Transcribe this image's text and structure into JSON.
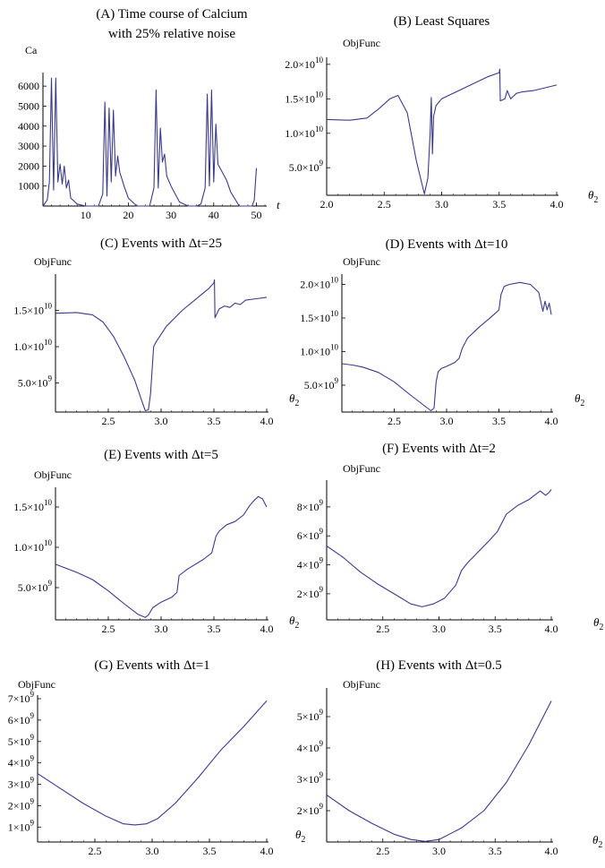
{
  "panels": [
    {
      "id": "A",
      "title_lines": [
        "(A) Time course of Calcium",
        "with 25% relative noise"
      ],
      "ylabel": "Ca",
      "xlabel": "t",
      "xlim": [
        0,
        52
      ],
      "ylim": [
        0,
        6500
      ],
      "xticks": [
        {
          "v": 10,
          "label": "10"
        },
        {
          "v": 20,
          "label": "20"
        },
        {
          "v": 30,
          "label": "30"
        },
        {
          "v": 40,
          "label": "40"
        },
        {
          "v": 50,
          "label": "50"
        }
      ],
      "yticks": [
        {
          "v": 1000,
          "label": "1000"
        },
        {
          "v": 2000,
          "label": "2000"
        },
        {
          "v": 3000,
          "label": "3000"
        },
        {
          "v": 4000,
          "label": "4000"
        },
        {
          "v": 5000,
          "label": "5000"
        },
        {
          "v": 6000,
          "label": "6000"
        }
      ],
      "chart_data": {
        "type": "line",
        "x": [
          0,
          1,
          1.5,
          2,
          2.5,
          3,
          3.5,
          4,
          4.5,
          5,
          5.5,
          6,
          6.5,
          7,
          8,
          10,
          12,
          13,
          14,
          14.5,
          15,
          15.5,
          16,
          16.5,
          17,
          17.5,
          18,
          19,
          20,
          22,
          24,
          25,
          26,
          26.5,
          27,
          27.5,
          28,
          28.5,
          29,
          30,
          31,
          32,
          34,
          36,
          37,
          38,
          38.5,
          39,
          39.5,
          40,
          40.5,
          41,
          42,
          43,
          44,
          46,
          48,
          49,
          49.5,
          50
        ],
        "y": [
          0,
          300,
          1200,
          6400,
          800,
          6400,
          1200,
          2100,
          1100,
          2000,
          900,
          1300,
          400,
          300,
          100,
          0,
          0,
          0,
          600,
          5200,
          500,
          4900,
          1200,
          4800,
          1500,
          2500,
          1700,
          1000,
          400,
          0,
          0,
          0,
          900,
          5800,
          900,
          3900,
          2200,
          2600,
          1500,
          1000,
          600,
          200,
          0,
          0,
          100,
          900,
          5600,
          1000,
          5800,
          1200,
          4100,
          2100,
          1700,
          1300,
          700,
          0,
          0,
          0,
          300,
          1900
        ]
      }
    },
    {
      "id": "B",
      "title_lines": [
        "(B) Least Squares"
      ],
      "ylabel": "ObjFunc",
      "xlabel": "θ2",
      "xlim": [
        2.0,
        4.0
      ],
      "ylim": [
        1000000000.0,
        20500000000.0
      ],
      "xticks": [
        {
          "v": 2.0,
          "label": "2.0"
        },
        {
          "v": 2.5,
          "label": "2.5"
        },
        {
          "v": 3.0,
          "label": "3.0"
        },
        {
          "v": 3.5,
          "label": "3.5"
        },
        {
          "v": 4.0,
          "label": "4.0"
        }
      ],
      "yticks": [
        {
          "v": 5000000000.0,
          "mant": "5.0",
          "exp": "9"
        },
        {
          "v": 10000000000.0,
          "mant": "1.0",
          "exp": "10"
        },
        {
          "v": 15000000000.0,
          "mant": "1.5",
          "exp": "10"
        },
        {
          "v": 20000000000.0,
          "mant": "2.0",
          "exp": "10"
        }
      ],
      "chart_data": {
        "type": "line",
        "x": [
          2.0,
          2.2,
          2.35,
          2.45,
          2.55,
          2.62,
          2.7,
          2.78,
          2.85,
          2.88,
          2.9,
          2.91,
          2.92,
          2.93,
          2.94,
          2.95,
          3.0,
          3.2,
          3.4,
          3.5,
          3.505,
          3.51,
          3.55,
          3.57,
          3.6,
          3.65,
          3.7,
          3.8,
          3.9,
          4.0
        ],
        "y": [
          12000000000.0,
          11900000000.0,
          12200000000.0,
          13500000000.0,
          15000000000.0,
          15500000000.0,
          13000000000.0,
          6000000000.0,
          1200000000.0,
          3500000000.0,
          10000000000.0,
          15200000000.0,
          7000000000.0,
          12500000000.0,
          13200000000.0,
          14000000000.0,
          15000000000.0,
          16600000000.0,
          18200000000.0,
          18800000000.0,
          19300000000.0,
          14700000000.0,
          15000000000.0,
          16200000000.0,
          15000000000.0,
          15800000000.0,
          16000000000.0,
          16200000000.0,
          16600000000.0,
          17000000000.0
        ]
      }
    },
    {
      "id": "C",
      "title_lines": [
        "(C) Events with Δt=25"
      ],
      "ylabel": "ObjFunc",
      "xlabel": "θ2",
      "xlim": [
        2.0,
        4.0
      ],
      "ylim": [
        1000000000.0,
        19500000000.0
      ],
      "xticks": [
        {
          "v": 2.5,
          "label": "2.5"
        },
        {
          "v": 3.0,
          "label": "3.0"
        },
        {
          "v": 3.5,
          "label": "3.5"
        },
        {
          "v": 4.0,
          "label": "4.0"
        }
      ],
      "yticks": [
        {
          "v": 5000000000.0,
          "mant": "5.0",
          "exp": "9"
        },
        {
          "v": 10000000000.0,
          "mant": "1.0",
          "exp": "10"
        },
        {
          "v": 15000000000.0,
          "mant": "1.5",
          "exp": "10"
        }
      ],
      "chart_data": {
        "type": "line",
        "x": [
          2.0,
          2.2,
          2.35,
          2.45,
          2.55,
          2.65,
          2.75,
          2.82,
          2.85,
          2.88,
          2.9,
          2.92,
          2.93,
          2.95,
          3.05,
          3.2,
          3.35,
          3.45,
          3.5,
          3.505,
          3.51,
          3.55,
          3.6,
          3.65,
          3.7,
          3.75,
          3.8,
          3.9,
          4.0
        ],
        "y": [
          14600000000.0,
          14700000000.0,
          14400000000.0,
          13400000000.0,
          11400000000.0,
          8600000000.0,
          5400000000.0,
          2400000000.0,
          1200000000.0,
          1300000000.0,
          3500000000.0,
          8000000000.0,
          10000000000.0,
          10600000000.0,
          12800000000.0,
          15000000000.0,
          16800000000.0,
          18000000000.0,
          18800000000.0,
          19200000000.0,
          14000000000.0,
          15200000000.0,
          15600000000.0,
          15400000000.0,
          16000000000.0,
          15800000000.0,
          16400000000.0,
          16600000000.0,
          16800000000.0
        ]
      }
    },
    {
      "id": "D",
      "title_lines": [
        "(D) Events with Δt=10"
      ],
      "ylabel": "ObjFunc",
      "xlabel": "θ2",
      "xlim": [
        2.0,
        4.0
      ],
      "ylim": [
        1000000000.0,
        21000000000.0
      ],
      "xticks": [
        {
          "v": 2.5,
          "label": "2.5"
        },
        {
          "v": 3.0,
          "label": "3.0"
        },
        {
          "v": 3.5,
          "label": "3.5"
        },
        {
          "v": 4.0,
          "label": "4.0"
        }
      ],
      "yticks": [
        {
          "v": 5000000000.0,
          "mant": "5.0",
          "exp": "9"
        },
        {
          "v": 10000000000.0,
          "mant": "1.0",
          "exp": "10"
        },
        {
          "v": 15000000000.0,
          "mant": "1.5",
          "exp": "10"
        },
        {
          "v": 20000000000.0,
          "mant": "2.0",
          "exp": "10"
        }
      ],
      "chart_data": {
        "type": "line",
        "x": [
          2.0,
          2.1,
          2.2,
          2.35,
          2.5,
          2.65,
          2.8,
          2.85,
          2.88,
          2.9,
          2.92,
          2.95,
          3.0,
          3.08,
          3.12,
          3.15,
          3.2,
          3.3,
          3.45,
          3.5,
          3.52,
          3.55,
          3.6,
          3.7,
          3.8,
          3.88,
          3.92,
          3.94,
          3.96,
          3.98,
          4.0
        ],
        "y": [
          8200000000.0,
          8000000000.0,
          7700000000.0,
          6900000000.0,
          5500000000.0,
          3600000000.0,
          1800000000.0,
          1200000000.0,
          1600000000.0,
          5500000000.0,
          7000000000.0,
          7500000000.0,
          7800000000.0,
          8400000000.0,
          9000000000.0,
          10500000000.0,
          12000000000.0,
          13500000000.0,
          15500000000.0,
          16200000000.0,
          18500000000.0,
          19700000000.0,
          20000000000.0,
          20300000000.0,
          20000000000.0,
          18800000000.0,
          16000000000.0,
          17500000000.0,
          16200000000.0,
          17200000000.0,
          15500000000.0
        ]
      }
    },
    {
      "id": "E",
      "title_lines": [
        "(E) Events with Δt=5"
      ],
      "ylabel": "ObjFunc",
      "xlabel": "θ2",
      "xlim": [
        2.0,
        4.0
      ],
      "ylim": [
        1000000000.0,
        17000000000.0
      ],
      "xticks": [
        {
          "v": 2.5,
          "label": "2.5"
        },
        {
          "v": 3.0,
          "label": "3.0"
        },
        {
          "v": 3.5,
          "label": "3.5"
        },
        {
          "v": 4.0,
          "label": "4.0"
        }
      ],
      "yticks": [
        {
          "v": 5000000000.0,
          "mant": "5.0",
          "exp": "9"
        },
        {
          "v": 10000000000.0,
          "mant": "1.0",
          "exp": "10"
        },
        {
          "v": 15000000000.0,
          "mant": "1.5",
          "exp": "10"
        }
      ],
      "chart_data": {
        "type": "line",
        "x": [
          2.0,
          2.2,
          2.35,
          2.5,
          2.65,
          2.78,
          2.85,
          2.88,
          2.92,
          3.0,
          3.1,
          3.15,
          3.17,
          3.25,
          3.4,
          3.48,
          3.52,
          3.55,
          3.62,
          3.7,
          3.78,
          3.84,
          3.88,
          3.92,
          3.96,
          4.0
        ],
        "y": [
          7900000000.0,
          6900000000.0,
          6000000000.0,
          4600000000.0,
          3000000000.0,
          1700000000.0,
          1300000000.0,
          1600000000.0,
          2500000000.0,
          3200000000.0,
          3800000000.0,
          4400000000.0,
          6500000000.0,
          7300000000.0,
          8500000000.0,
          9300000000.0,
          11400000000.0,
          12000000000.0,
          12800000000.0,
          13200000000.0,
          14000000000.0,
          15200000000.0,
          15800000000.0,
          16300000000.0,
          16000000000.0,
          15000000000.0
        ]
      }
    },
    {
      "id": "F",
      "title_lines": [
        "(F) Events with Δt=2"
      ],
      "ylabel": "ObjFunc",
      "xlabel": "θ2",
      "xlim": [
        2.0,
        4.0
      ],
      "ylim": [
        200000000.0,
        9600000000.0
      ],
      "xticks": [
        {
          "v": 2.5,
          "label": "2.5"
        },
        {
          "v": 3.0,
          "label": "3.0"
        },
        {
          "v": 3.5,
          "label": "3.5"
        },
        {
          "v": 4.0,
          "label": "4.0"
        }
      ],
      "yticks": [
        {
          "v": 2000000000.0,
          "mant": "2",
          "exp": "9"
        },
        {
          "v": 4000000000.0,
          "mant": "4",
          "exp": "9"
        },
        {
          "v": 6000000000.0,
          "mant": "6",
          "exp": "9"
        },
        {
          "v": 8000000000.0,
          "mant": "8",
          "exp": "9"
        }
      ],
      "chart_data": {
        "type": "line",
        "x": [
          2.0,
          2.15,
          2.3,
          2.45,
          2.6,
          2.75,
          2.85,
          2.95,
          3.05,
          3.15,
          3.2,
          3.25,
          3.35,
          3.45,
          3.52,
          3.6,
          3.7,
          3.8,
          3.9,
          3.95,
          3.98,
          4.0
        ],
        "y": [
          5300000000.0,
          4500000000.0,
          3500000000.0,
          2700000000.0,
          2000000000.0,
          1300000000.0,
          1100000000.0,
          1300000000.0,
          1700000000.0,
          2600000000.0,
          3600000000.0,
          4100000000.0,
          4900000000.0,
          5700000000.0,
          6300000000.0,
          7500000000.0,
          8100000000.0,
          8500000000.0,
          9100000000.0,
          8800000000.0,
          9000000000.0,
          9200000000.0
        ]
      }
    },
    {
      "id": "G",
      "title_lines": [
        "(G) Events with Δt=1"
      ],
      "ylabel": "ObjFunc",
      "xlabel": "θ2",
      "xlim": [
        2.0,
        4.0
      ],
      "ylim": [
        300000000.0,
        7000000000.0
      ],
      "xticks": [
        {
          "v": 2.5,
          "label": "2.5"
        },
        {
          "v": 3.0,
          "label": "3.0"
        },
        {
          "v": 3.5,
          "label": "3.5"
        },
        {
          "v": 4.0,
          "label": "4.0"
        }
      ],
      "yticks": [
        {
          "v": 1000000000.0,
          "mant": "1",
          "exp": "9"
        },
        {
          "v": 2000000000.0,
          "mant": "2",
          "exp": "9"
        },
        {
          "v": 3000000000.0,
          "mant": "3",
          "exp": "9"
        },
        {
          "v": 4000000000.0,
          "mant": "4",
          "exp": "9"
        },
        {
          "v": 5000000000.0,
          "mant": "5",
          "exp": "9"
        },
        {
          "v": 6000000000.0,
          "mant": "6",
          "exp": "9"
        },
        {
          "v": 7000000000.0,
          "mant": "7",
          "exp": "9"
        }
      ],
      "chart_data": {
        "type": "line",
        "x": [
          2.0,
          2.2,
          2.4,
          2.6,
          2.75,
          2.85,
          2.95,
          3.05,
          3.2,
          3.4,
          3.6,
          3.8,
          4.0
        ],
        "y": [
          3500000000.0,
          2800000000.0,
          2100000000.0,
          1500000000.0,
          1150000000.0,
          1100000000.0,
          1150000000.0,
          1400000000.0,
          2100000000.0,
          3300000000.0,
          4600000000.0,
          5700000000.0,
          6900000000.0
        ]
      }
    },
    {
      "id": "H",
      "title_lines": [
        "(H) Events with Δt=0.5"
      ],
      "ylabel": "ObjFunc",
      "xlabel": "θ2",
      "xlim": [
        2.0,
        4.0
      ],
      "ylim": [
        1000000000.0,
        5800000000.0
      ],
      "xticks": [
        {
          "v": 2.5,
          "label": "2.5"
        },
        {
          "v": 3.0,
          "label": "3.0"
        },
        {
          "v": 3.5,
          "label": "3.5"
        },
        {
          "v": 4.0,
          "label": "4.0"
        }
      ],
      "yticks": [
        {
          "v": 2000000000.0,
          "mant": "2",
          "exp": "9"
        },
        {
          "v": 3000000000.0,
          "mant": "3",
          "exp": "9"
        },
        {
          "v": 4000000000.0,
          "mant": "4",
          "exp": "9"
        },
        {
          "v": 5000000000.0,
          "mant": "5",
          "exp": "9"
        }
      ],
      "chart_data": {
        "type": "line",
        "x": [
          2.0,
          2.2,
          2.4,
          2.6,
          2.75,
          2.88,
          3.0,
          3.2,
          3.4,
          3.6,
          3.8,
          4.0
        ],
        "y": [
          2500000000.0,
          2000000000.0,
          1600000000.0,
          1250000000.0,
          1080000000.0,
          1020000000.0,
          1080000000.0,
          1450000000.0,
          2000000000.0,
          2900000000.0,
          4100000000.0,
          5500000000.0
        ]
      }
    }
  ],
  "colors": {
    "curve": "#3a3a8c",
    "axis": "#000000"
  }
}
